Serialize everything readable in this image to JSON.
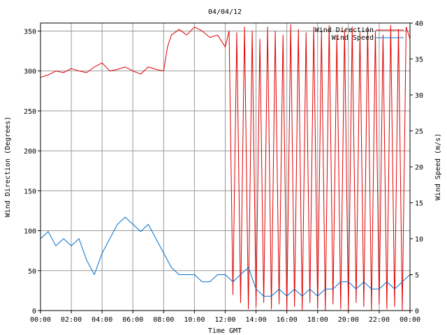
{
  "chart_data": {
    "type": "line",
    "title": "04/04/12",
    "xlabel": "Time GMT",
    "ylabel_left": "Wind Direction (Degrees)",
    "ylabel_right": "Wind Speed (m/s)",
    "x_ticks": [
      "00:00",
      "02:00",
      "04:00",
      "06:00",
      "08:00",
      "10:00",
      "12:00",
      "14:00",
      "16:00",
      "18:00",
      "20:00",
      "22:00",
      "00:00"
    ],
    "xlim_hours": [
      0,
      24
    ],
    "ylim_left": [
      0,
      360
    ],
    "ylim_right": [
      0,
      40
    ],
    "y_ticks_left": [
      "0",
      "50",
      "100",
      "150",
      "200",
      "250",
      "300",
      "350"
    ],
    "y_ticks_right": [
      "0",
      "5",
      "10",
      "15",
      "20",
      "25",
      "30",
      "35",
      "40"
    ],
    "grid": true,
    "legend_position": "top-right",
    "series": [
      {
        "name": "Wind Direction",
        "axis": "left",
        "color": "#e00000",
        "x": [
          0,
          0.5,
          1,
          1.5,
          2,
          2.5,
          3,
          3.5,
          4,
          4.5,
          5,
          5.5,
          6,
          6.5,
          7,
          7.5,
          8,
          8.25,
          8.5,
          9,
          9.5,
          10,
          10.5,
          11,
          11.5,
          12,
          12.25,
          12.5,
          12.75,
          13,
          13.25,
          13.5,
          13.75,
          14,
          14.25,
          14.5,
          14.75,
          15,
          15.25,
          15.5,
          15.75,
          16,
          16.25,
          16.5,
          16.75,
          17,
          17.25,
          17.5,
          17.75,
          18,
          18.25,
          18.5,
          18.75,
          19,
          19.25,
          19.5,
          19.75,
          20,
          20.25,
          20.5,
          20.75,
          21,
          21.25,
          21.5,
          21.75,
          22,
          22.25,
          22.5,
          22.75,
          23,
          23.25,
          23.5,
          23.75,
          24
        ],
        "values": [
          292,
          295,
          300,
          298,
          303,
          300,
          298,
          305,
          310,
          300,
          302,
          305,
          300,
          296,
          305,
          302,
          300,
          330,
          345,
          352,
          345,
          355,
          350,
          342,
          345,
          330,
          350,
          20,
          348,
          10,
          355,
          2,
          350,
          5,
          340,
          10,
          355,
          2,
          350,
          8,
          345,
          0,
          358,
          5,
          352,
          0,
          348,
          10,
          355,
          3,
          350,
          0,
          357,
          8,
          345,
          2,
          352,
          0,
          355,
          10,
          348,
          5,
          355,
          0,
          350,
          8,
          345,
          2,
          357,
          5,
          352,
          0,
          355,
          340
        ]
      },
      {
        "name": "Wind Speed",
        "axis": "right",
        "color": "#0070d0",
        "x": [
          0,
          0.5,
          1,
          1.5,
          2,
          2.5,
          3,
          3.5,
          4,
          4.5,
          5,
          5.5,
          6,
          6.5,
          7,
          7.5,
          8,
          8.5,
          9,
          9.5,
          10,
          10.5,
          11,
          11.5,
          12,
          12.5,
          13,
          13.5,
          14,
          14.5,
          15,
          15.5,
          16,
          16.5,
          17,
          17.5,
          18,
          18.5,
          19,
          19.5,
          20,
          20.5,
          21,
          21.5,
          22,
          22.5,
          23,
          23.5,
          24
        ],
        "values": [
          10,
          11,
          9,
          10,
          9,
          10,
          7,
          5,
          8,
          10,
          12,
          13,
          12,
          11,
          12,
          10,
          8,
          6,
          5,
          5,
          5,
          4,
          4,
          5,
          5,
          4,
          5,
          6,
          3,
          2,
          2,
          3,
          2,
          3,
          2,
          3,
          2,
          3,
          3,
          4,
          4,
          3,
          4,
          3,
          3,
          4,
          3,
          4,
          5
        ]
      }
    ]
  }
}
